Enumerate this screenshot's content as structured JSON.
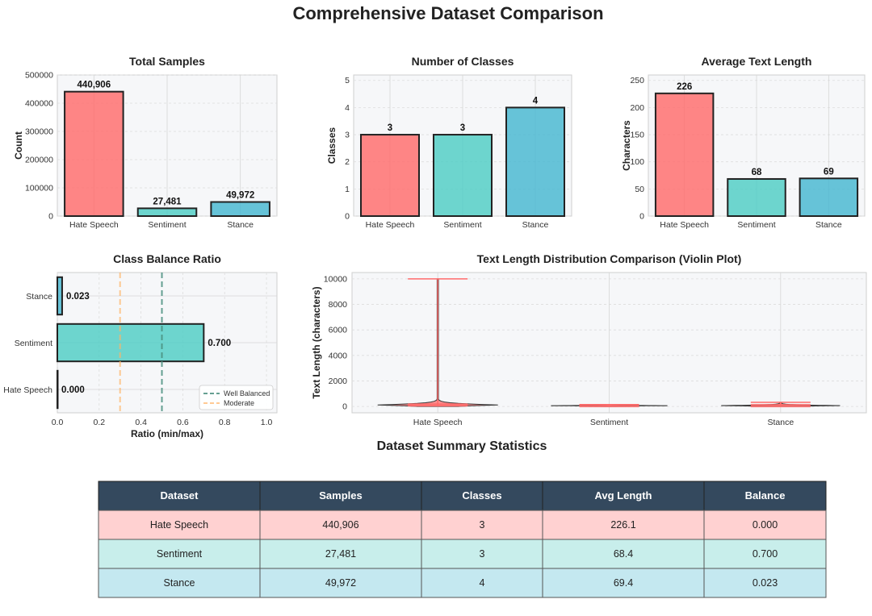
{
  "figure_title": "Comprehensive Dataset Comparison",
  "colors": {
    "hate": "#FF6B6B",
    "sentiment": "#4ECDC4",
    "stance": "#45B7D1",
    "well": "#4A8F7F",
    "moderate": "#FFB366",
    "header": "#34495E",
    "row_hate": "#FFD1D1",
    "row_sentiment": "#C8EEEB",
    "row_stance": "#C4E8F0"
  },
  "chart_data": [
    {
      "id": "samples",
      "type": "bar",
      "title": "Total Samples",
      "ylabel": "Count",
      "categories": [
        "Hate Speech",
        "Sentiment",
        "Stance"
      ],
      "values": [
        440906,
        27481,
        49972
      ],
      "value_labels": [
        "440,906",
        "27,481",
        "49,972"
      ],
      "ylim": [
        0,
        500000
      ],
      "yticks": [
        0,
        100000,
        200000,
        300000,
        400000,
        500000
      ]
    },
    {
      "id": "classes",
      "type": "bar",
      "title": "Number of Classes",
      "ylabel": "Classes",
      "categories": [
        "Hate Speech",
        "Sentiment",
        "Stance"
      ],
      "values": [
        3,
        3,
        4
      ],
      "value_labels": [
        "3",
        "3",
        "4"
      ],
      "ylim": [
        0,
        5.2
      ],
      "yticks": [
        0,
        1,
        2,
        3,
        4,
        5
      ]
    },
    {
      "id": "length",
      "type": "bar",
      "title": "Average Text Length",
      "ylabel": "Characters",
      "categories": [
        "Hate Speech",
        "Sentiment",
        "Stance"
      ],
      "values": [
        226.1,
        68.4,
        69.4
      ],
      "value_labels": [
        "226",
        "68",
        "69"
      ],
      "ylim": [
        0,
        260
      ],
      "yticks": [
        0,
        50,
        100,
        150,
        200,
        250
      ]
    },
    {
      "id": "balance",
      "type": "bar",
      "orientation": "horizontal",
      "title": "Class Balance Ratio",
      "xlabel": "Ratio (min/max)",
      "categories": [
        "Hate Speech",
        "Sentiment",
        "Stance"
      ],
      "values": [
        0.0,
        0.7,
        0.023
      ],
      "value_labels": [
        "0.000",
        "0.700",
        "0.023"
      ],
      "xlim": [
        0,
        1.05
      ],
      "xticks": [
        "0.0",
        "0.2",
        "0.4",
        "0.6",
        "0.8",
        "1.0"
      ],
      "reference_lines": [
        {
          "name": "Well Balanced",
          "x": 0.5
        },
        {
          "name": "Moderate",
          "x": 0.3
        }
      ],
      "legend_position": "lower-right"
    },
    {
      "id": "violin",
      "type": "violin",
      "title": "Text Length Distribution Comparison (Violin Plot)",
      "ylabel": "Text Length (characters)",
      "categories": [
        "Hate Speech",
        "Sentiment",
        "Stance"
      ],
      "ylim": [
        -500,
        10500
      ],
      "yticks": [
        0,
        2000,
        4000,
        6000,
        8000,
        10000
      ],
      "distributions": [
        {
          "name": "Hate Speech",
          "min": 0,
          "max": 10000,
          "median": 120
        },
        {
          "name": "Sentiment",
          "min": 10,
          "max": 150,
          "median": 60
        },
        {
          "name": "Stance",
          "min": 20,
          "max": 320,
          "median": 65
        }
      ]
    }
  ],
  "table": {
    "title": "Dataset Summary Statistics",
    "headers": [
      "Dataset",
      "Samples",
      "Classes",
      "Avg Length",
      "Balance"
    ],
    "rows": [
      [
        "Hate Speech",
        "440,906",
        "3",
        "226.1",
        "0.000"
      ],
      [
        "Sentiment",
        "27,481",
        "3",
        "68.4",
        "0.700"
      ],
      [
        "Stance",
        "49,972",
        "4",
        "69.4",
        "0.023"
      ]
    ]
  }
}
